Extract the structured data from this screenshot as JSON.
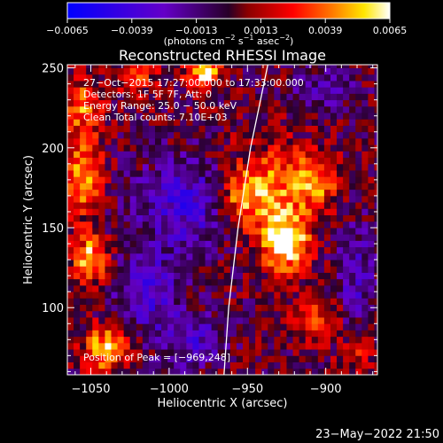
{
  "chart_data": {
    "type": "heatmap",
    "title": "Reconstructed RHESSI Image",
    "xlabel": "Heliocentric X (arcsec)",
    "ylabel": "Heliocentric Y (arcsec)",
    "xlim": [
      -1065,
      -867
    ],
    "ylim": [
      58,
      252
    ],
    "x_ticks": [
      -1050,
      -1000,
      -950,
      -900
    ],
    "y_ticks": [
      100,
      150,
      200,
      250
    ],
    "x_tick_labels": [
      "−1050",
      "−1000",
      "−950",
      "−900"
    ],
    "y_tick_labels": [
      "100",
      "150",
      "200",
      "250"
    ],
    "colorbar": {
      "range": [
        -0.0065,
        0.0065
      ],
      "ticks": [
        -0.0065,
        -0.0039,
        -0.0013,
        0.0013,
        0.0039,
        0.0065
      ],
      "tick_labels": [
        "−0.0065",
        "−0.0039",
        "−0.0013",
        "0.0013",
        "0.0039",
        "0.0065"
      ],
      "unit_label": "(photons cm",
      "unit_exp1": "−2",
      "unit_mid": " s",
      "unit_exp2": "−1",
      "unit_mid2": " asec",
      "unit_exp3": "−2",
      "unit_end": ")"
    },
    "info_lines": [
      "27−Oct−2015 17:27:00.000 to 17:33:00.000",
      "Detectors: 1F 5F 7F, Att: 0",
      "Energy Range: 25.0 − 50.0 keV",
      "Clean     Total counts: 7.10E+03"
    ],
    "peak_label": "Position of Peak = [−969,248]",
    "limb_points": [
      [
        -965,
        58
      ],
      [
        -962,
        100
      ],
      [
        -956,
        150
      ],
      [
        -948,
        200
      ],
      [
        -937,
        252
      ]
    ],
    "sources": [
      {
        "x": -925,
        "y": 140,
        "sx": 10,
        "sy": 12,
        "amp": 0.0065
      },
      {
        "x": -935,
        "y": 172,
        "sx": 18,
        "sy": 20,
        "amp": 0.0045
      },
      {
        "x": -905,
        "y": 180,
        "sx": 10,
        "sy": 12,
        "amp": 0.0035
      },
      {
        "x": -955,
        "y": 170,
        "sx": 8,
        "sy": 10,
        "amp": 0.003
      },
      {
        "x": -1050,
        "y": 130,
        "sx": 8,
        "sy": 10,
        "amp": 0.0055
      },
      {
        "x": -1055,
        "y": 185,
        "sx": 8,
        "sy": 20,
        "amp": 0.0045
      },
      {
        "x": -1055,
        "y": 228,
        "sx": 8,
        "sy": 10,
        "amp": 0.0038
      },
      {
        "x": -1040,
        "y": 75,
        "sx": 10,
        "sy": 10,
        "amp": 0.0055
      },
      {
        "x": -978,
        "y": 248,
        "sx": 8,
        "sy": 6,
        "amp": 0.0065
      },
      {
        "x": -1020,
        "y": 245,
        "sx": 10,
        "sy": 8,
        "amp": 0.0025
      },
      {
        "x": -905,
        "y": 95,
        "sx": 10,
        "sy": 10,
        "amp": 0.0028
      },
      {
        "x": -880,
        "y": 70,
        "sx": 8,
        "sy": 8,
        "amp": 0.0025
      },
      {
        "x": -990,
        "y": 165,
        "sx": 22,
        "sy": 20,
        "amp": -0.0035
      },
      {
        "x": -1015,
        "y": 110,
        "sx": 15,
        "sy": 18,
        "amp": -0.0032
      },
      {
        "x": -985,
        "y": 80,
        "sx": 14,
        "sy": 12,
        "amp": -0.003
      },
      {
        "x": -880,
        "y": 120,
        "sx": 10,
        "sy": 25,
        "amp": -0.0025
      },
      {
        "x": -900,
        "y": 235,
        "sx": 14,
        "sy": 10,
        "amp": -0.002
      }
    ]
  },
  "footer": {
    "date": "23−May−2022 21:50"
  }
}
